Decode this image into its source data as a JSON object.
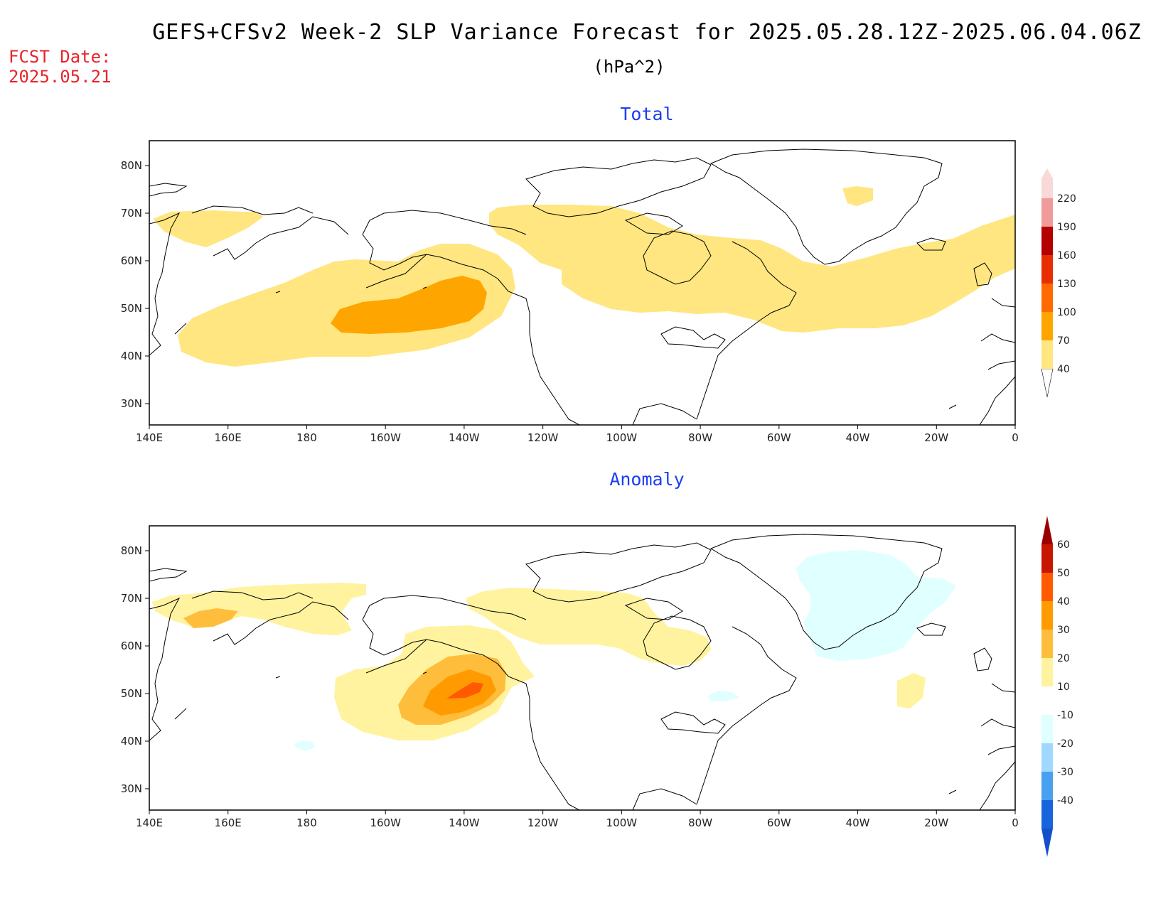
{
  "header": {
    "title": "GEFS+CFSv2 Week-2 SLP Variance Forecast for 2025.05.28.12Z-2025.06.04.06Z",
    "units": "(hPa^2)",
    "fcst_label": "FCST Date:",
    "fcst_date": "2025.05.21"
  },
  "panels": {
    "total": {
      "title": "Total",
      "colorbar_labels": [
        "40",
        "70",
        "100",
        "130",
        "160",
        "190",
        "220"
      ],
      "colorbar_colors": [
        "#ffe680",
        "#ffa500",
        "#ff6a00",
        "#e82d00",
        "#b40000",
        "#f09a9a",
        "#f9d8d8"
      ]
    },
    "anomaly": {
      "title": "Anomaly",
      "colorbar_labels": [
        "60",
        "50",
        "40",
        "30",
        "20",
        "10",
        "-10",
        "-20",
        "-30",
        "-40"
      ],
      "colorbar_colors": [
        "#c81600",
        "#ff5a00",
        "#ff9b00",
        "#ffbd3c",
        "#fff3a0",
        "#ffffff",
        "#e0ffff",
        "#a0d8ff",
        "#4aa0f0",
        "#1864dc"
      ]
    }
  },
  "axes": {
    "lat_labels": [
      "80N",
      "70N",
      "60N",
      "50N",
      "40N",
      "30N"
    ],
    "lon_labels": [
      "140E",
      "160E",
      "180",
      "160W",
      "140W",
      "120W",
      "100W",
      "80W",
      "60W",
      "40W",
      "20W",
      "0"
    ]
  },
  "colors": {
    "title_text": "#000000",
    "fcst_text": "#e8242b",
    "panel_title": "#1c3df0",
    "shade_light_total": "#ffe680",
    "shade_mid_total": "#ffa500",
    "shade_light_anom": "#fff3a0",
    "shade_20_anom": "#ffbd3c",
    "shade_30_anom": "#ff9b00",
    "shade_40_anom": "#ff5a00",
    "shade_neg_anom": "#e0ffff",
    "shade_neg20_anom": "#c6f0ff"
  }
}
